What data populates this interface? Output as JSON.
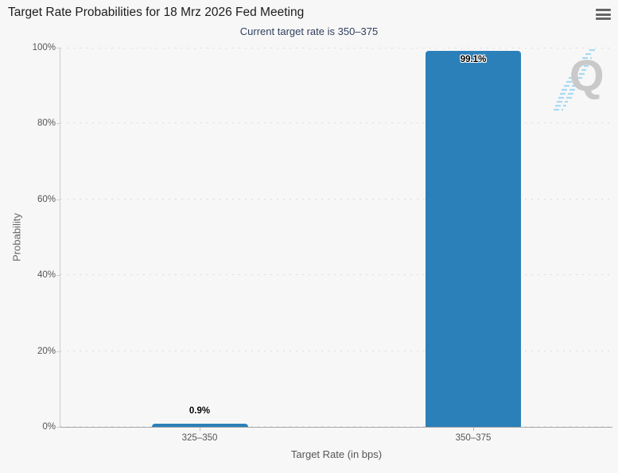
{
  "header": {
    "title": "Target Rate Probabilities for 18 Mrz 2026 Fed Meeting",
    "menu_icon": "hamburger-menu-icon"
  },
  "chart_data": {
    "type": "bar",
    "title": "Target Rate Probabilities for 18 Mrz 2026 Fed Meeting",
    "subtitle": "Current target rate is 350–375",
    "categories": [
      "325–350",
      "350–375"
    ],
    "values": [
      0.9,
      99.1
    ],
    "bar_labels": [
      "0.9%",
      "99.1%"
    ],
    "xlabel": "Target Rate (in bps)",
    "ylabel": "Probability",
    "ylim": [
      0,
      100
    ],
    "ytick_labels": [
      "0%",
      "20%",
      "40%",
      "60%",
      "80%",
      "100%"
    ],
    "ytick_step": 20,
    "grid": "dotted-horizontal",
    "legend": "none",
    "bar_color": "#2c80b9",
    "watermark_letter": "Q"
  }
}
